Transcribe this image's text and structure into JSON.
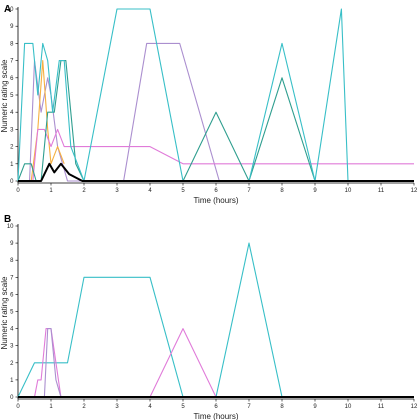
{
  "chart_data": [
    {
      "type": "line",
      "panel_label": "A",
      "xlabel": "Time (hours)",
      "ylabel": "Numeric rating scale",
      "xlim": [
        0,
        12
      ],
      "ylim": [
        0,
        10
      ],
      "x_ticks": [
        0,
        1,
        2,
        3,
        4,
        5,
        6,
        7,
        8,
        9,
        10,
        11,
        12
      ],
      "y_ticks": [
        0,
        1,
        2,
        3,
        4,
        5,
        6,
        7,
        8,
        9,
        10
      ],
      "series": [
        {
          "color": "#ab8fcf",
          "points": [
            [
              0.35,
              0
            ],
            [
              0.5,
              7
            ],
            [
              0.7,
              4
            ],
            [
              0.9,
              6
            ],
            [
              1.0,
              5
            ],
            [
              1.2,
              2
            ],
            [
              1.5,
              0
            ],
            [
              3.2,
              0
            ],
            [
              3.9,
              8
            ],
            [
              4.9,
              8
            ],
            [
              6.1,
              0
            ]
          ]
        },
        {
          "color": "#f5b041",
          "points": [
            [
              0.4,
              0
            ],
            [
              0.6,
              3
            ],
            [
              0.75,
              7
            ],
            [
              0.9,
              3
            ],
            [
              1.0,
              1
            ],
            [
              1.2,
              2
            ],
            [
              1.4,
              1
            ]
          ]
        },
        {
          "color": "#e07bd9",
          "points": [
            [
              0.45,
              0
            ],
            [
              0.6,
              3
            ],
            [
              0.8,
              3
            ],
            [
              1.0,
              2
            ],
            [
              1.2,
              3
            ],
            [
              1.4,
              2
            ],
            [
              2.0,
              2
            ],
            [
              4.0,
              2
            ],
            [
              5.0,
              1
            ],
            [
              12.0,
              1
            ]
          ]
        },
        {
          "color": "#2f9e8f",
          "points": [
            [
              0,
              0
            ],
            [
              0.2,
              1
            ],
            [
              0.4,
              1
            ],
            [
              0.55,
              0
            ],
            [
              0.7,
              0
            ],
            [
              0.9,
              4
            ],
            [
              1.1,
              4
            ],
            [
              1.3,
              7
            ],
            [
              1.45,
              7
            ],
            [
              1.75,
              1
            ],
            [
              2.0,
              0
            ],
            [
              5.0,
              0
            ],
            [
              6.0,
              4
            ],
            [
              7.0,
              0
            ],
            [
              8.0,
              6
            ],
            [
              9.0,
              0
            ]
          ]
        },
        {
          "color": "#38bfc7",
          "points": [
            [
              0,
              0
            ],
            [
              0.2,
              8
            ],
            [
              0.45,
              8
            ],
            [
              0.6,
              5
            ],
            [
              0.75,
              8
            ],
            [
              0.9,
              7
            ],
            [
              1.05,
              4
            ],
            [
              1.25,
              7
            ],
            [
              1.4,
              7
            ],
            [
              1.6,
              2
            ],
            [
              2.0,
              0
            ],
            [
              3.0,
              10
            ],
            [
              4.0,
              10
            ],
            [
              5.0,
              0
            ],
            [
              7.0,
              0
            ],
            [
              8.0,
              8
            ],
            [
              9.0,
              0
            ],
            [
              9.8,
              10
            ],
            [
              10.0,
              0
            ]
          ]
        },
        {
          "color": "#000000",
          "bold": true,
          "points": [
            [
              0,
              0
            ],
            [
              0.7,
              0
            ],
            [
              0.95,
              1
            ],
            [
              1.1,
              0.5
            ],
            [
              1.3,
              1
            ],
            [
              1.55,
              0.4
            ],
            [
              1.95,
              0
            ],
            [
              12.0,
              0
            ]
          ]
        }
      ]
    },
    {
      "type": "line",
      "panel_label": "B",
      "xlabel": "Time (hours)",
      "ylabel": "Numeric rating scale",
      "xlim": [
        0,
        12
      ],
      "ylim": [
        0,
        10
      ],
      "x_ticks": [
        0,
        1,
        2,
        3,
        4,
        5,
        6,
        7,
        8,
        9,
        10,
        11,
        12
      ],
      "y_ticks": [
        0,
        1,
        2,
        3,
        4,
        5,
        6,
        7,
        8,
        9,
        10
      ],
      "series": [
        {
          "color": "#38bfc7",
          "points": [
            [
              0,
              0
            ],
            [
              0.5,
              2
            ],
            [
              1.5,
              2
            ],
            [
              2.0,
              7
            ],
            [
              4.0,
              7
            ],
            [
              5.0,
              0
            ],
            [
              6.0,
              0
            ],
            [
              7.0,
              9
            ],
            [
              8.0,
              0
            ]
          ]
        },
        {
          "color": "#e07bd9",
          "points": [
            [
              0.5,
              0
            ],
            [
              0.6,
              1
            ],
            [
              0.7,
              1
            ],
            [
              0.85,
              4
            ],
            [
              1.0,
              4
            ],
            [
              1.3,
              0
            ],
            [
              4.0,
              0
            ],
            [
              5.0,
              4
            ],
            [
              6.0,
              0
            ]
          ]
        },
        {
          "color": "#ab8fcf",
          "points": [
            [
              0.8,
              0
            ],
            [
              0.9,
              4
            ],
            [
              1.0,
              4
            ],
            [
              1.15,
              1
            ],
            [
              1.3,
              0
            ]
          ]
        },
        {
          "color": "#000000",
          "bold": true,
          "points": [
            [
              0,
              0
            ],
            [
              12.0,
              0
            ]
          ]
        }
      ]
    }
  ],
  "colors": {
    "teal": "#38bfc7",
    "green": "#2f9e8f",
    "lavender": "#ab8fcf",
    "pink": "#e07bd9",
    "orange": "#f5b041",
    "black": "#000000"
  }
}
